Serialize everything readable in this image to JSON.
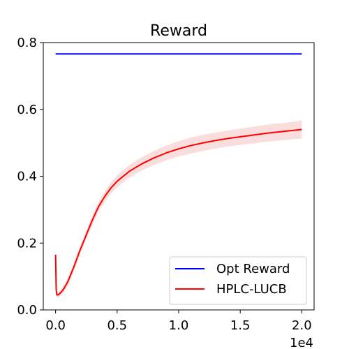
{
  "chart_data": {
    "type": "line",
    "title": "Reward",
    "xlabel": "",
    "ylabel": "",
    "x_offset_label": "1e4",
    "xlim": [
      -0.1,
      2.1
    ],
    "ylim": [
      0.0,
      0.8
    ],
    "xticks": [
      0.0,
      0.5,
      1.0,
      1.5,
      2.0
    ],
    "xtick_labels": [
      "0.0",
      "0.5",
      "1.0",
      "1.5",
      "2.0"
    ],
    "yticks": [
      0.0,
      0.2,
      0.4,
      0.6,
      0.8
    ],
    "ytick_labels": [
      "0.0",
      "0.2",
      "0.4",
      "0.6",
      "0.8"
    ],
    "grid": false,
    "legend_position": "lower-right",
    "series": [
      {
        "name": "Opt Reward",
        "color": "#0000ff",
        "x": [
          0.0,
          2.0
        ],
        "y": [
          0.766,
          0.766
        ]
      },
      {
        "name": "HPLC-LUCB",
        "color": "#ff0000",
        "band_color": "#f4b6b6",
        "x": [
          0.0,
          0.005,
          0.01,
          0.02,
          0.03,
          0.05,
          0.07,
          0.1,
          0.15,
          0.2,
          0.25,
          0.3,
          0.35,
          0.4,
          0.45,
          0.5,
          0.6,
          0.7,
          0.8,
          0.9,
          1.0,
          1.1,
          1.2,
          1.3,
          1.4,
          1.5,
          1.6,
          1.7,
          1.8,
          1.9,
          2.0
        ],
        "y": [
          0.165,
          0.06,
          0.045,
          0.045,
          0.048,
          0.055,
          0.065,
          0.085,
          0.13,
          0.18,
          0.225,
          0.27,
          0.31,
          0.34,
          0.365,
          0.385,
          0.415,
          0.437,
          0.455,
          0.47,
          0.482,
          0.492,
          0.5,
          0.507,
          0.513,
          0.518,
          0.523,
          0.528,
          0.532,
          0.536,
          0.54
        ],
        "band_lower": [
          0.14,
          0.05,
          0.038,
          0.038,
          0.04,
          0.046,
          0.055,
          0.074,
          0.118,
          0.168,
          0.212,
          0.256,
          0.295,
          0.324,
          0.348,
          0.367,
          0.396,
          0.417,
          0.434,
          0.448,
          0.459,
          0.468,
          0.476,
          0.483,
          0.489,
          0.494,
          0.498,
          0.503,
          0.506,
          0.51,
          0.513
        ],
        "band_upper": [
          0.19,
          0.07,
          0.052,
          0.052,
          0.056,
          0.064,
          0.075,
          0.096,
          0.142,
          0.192,
          0.238,
          0.284,
          0.325,
          0.356,
          0.382,
          0.403,
          0.434,
          0.457,
          0.476,
          0.492,
          0.505,
          0.516,
          0.524,
          0.531,
          0.537,
          0.542,
          0.548,
          0.553,
          0.558,
          0.562,
          0.567
        ]
      }
    ]
  }
}
